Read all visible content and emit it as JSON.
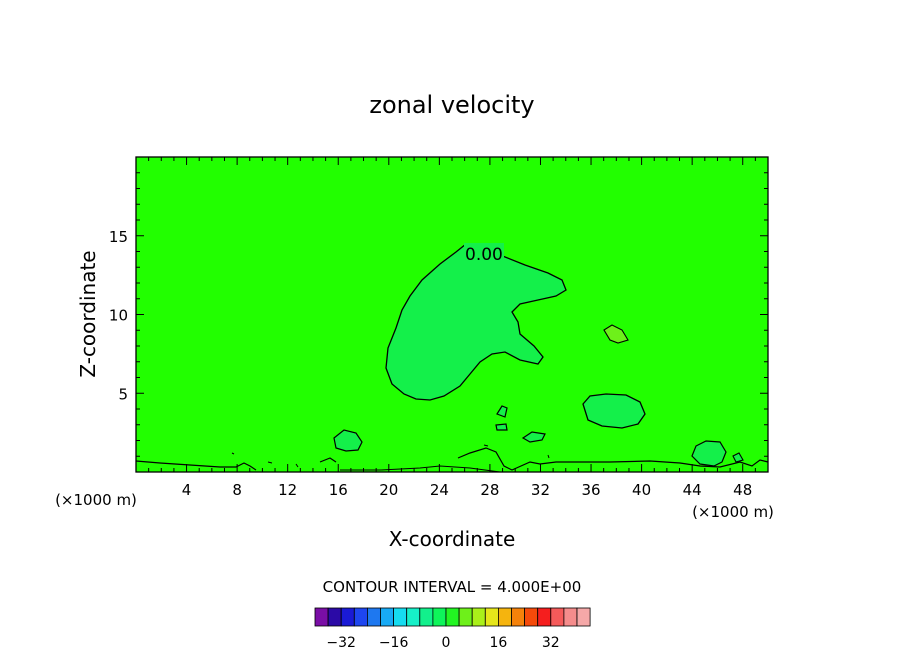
{
  "chart_data": {
    "type": "contour",
    "title": "zonal velocity",
    "xlabel": "X-coordinate",
    "ylabel": "Z-coordinate",
    "x_unit": "(×1000 m)",
    "xlim": [
      0,
      50
    ],
    "ylim": [
      0,
      20
    ],
    "x_ticks": [
      "4",
      "8",
      "12",
      "16",
      "20",
      "24",
      "28",
      "32",
      "36",
      "40",
      "44",
      "48"
    ],
    "y_ticks": [
      "5",
      "10",
      "15"
    ],
    "contour_label": "0.00",
    "contour_interval_text": "CONTOUR INTERVAL = 4.000E+00",
    "colorbar": {
      "tick_labels": [
        "-32",
        "-16",
        "0",
        "16",
        "32"
      ],
      "colors": [
        "#7a0ea6",
        "#2b0aa6",
        "#1a1ad6",
        "#1e46f0",
        "#1e78f0",
        "#18aaf5",
        "#16dcf0",
        "#16f0c8",
        "#12f08c",
        "#0ef55a",
        "#22f522",
        "#6ef01a",
        "#aaf01a",
        "#e6e61a",
        "#f5b40e",
        "#f5820a",
        "#f54a0a",
        "#f51e1e",
        "#f55a5a",
        "#f58c8c",
        "#f5a8a8"
      ]
    },
    "background_color": "#22ff00",
    "region_color": "#14f04a"
  }
}
